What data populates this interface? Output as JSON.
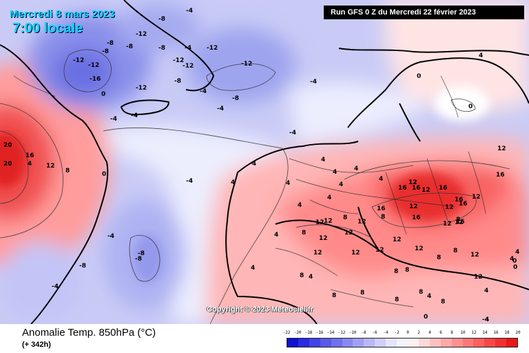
{
  "header": {
    "date": "Mercredi 8 mars 2023",
    "time": "7:00 locale",
    "run": "Run GFS 0 Z du Mercredi 22 février 2023"
  },
  "copyright": "Copyright © 2023 Meteociel.fr",
  "footer": {
    "title": "Anomalie Temp. 850hPa (°C)",
    "lead": "(+ 342h)"
  },
  "legend": {
    "ticks": [
      "-22",
      "-20",
      "-18",
      "-16",
      "-14",
      "-12",
      "-10",
      "-8",
      "-6",
      "-4",
      "-2",
      "0",
      "2",
      "4",
      "6",
      "8",
      "10",
      "12",
      "14",
      "16",
      "18",
      "20"
    ],
    "colors": [
      "#1010d0",
      "#2a2ae0",
      "#4242e8",
      "#5a5ae8",
      "#7070ec",
      "#8888f0",
      "#a0a0f4",
      "#b8b8f6",
      "#cfcffa",
      "#e4e4fc",
      "#f3f3fe",
      "#fff0f0",
      "#ffd8d8",
      "#ffc0c0",
      "#ffa8a8",
      "#ff9090",
      "#ff7878",
      "#ff6060",
      "#f84848",
      "#f03030",
      "#e81818"
    ]
  },
  "map_labels": [
    {
      "text": "-8"
    },
    {
      "text": "-12"
    },
    {
      "text": "-4"
    },
    {
      "text": "-8"
    },
    {
      "text": "-12"
    },
    {
      "text": "-8"
    },
    {
      "text": "-12"
    },
    {
      "text": "-16"
    },
    {
      "text": "-12"
    },
    {
      "text": "-8"
    },
    {
      "text": "-8"
    },
    {
      "text": "-4"
    },
    {
      "text": "-12"
    },
    {
      "text": "-12"
    },
    {
      "text": "-8"
    },
    {
      "text": "-12"
    },
    {
      "text": "-4"
    },
    {
      "text": "-12"
    },
    {
      "text": "-8"
    },
    {
      "text": "-4"
    },
    {
      "text": "-4"
    },
    {
      "text": "-4"
    },
    {
      "text": "-4"
    },
    {
      "text": "-8"
    },
    {
      "text": "-4"
    },
    {
      "text": "-4"
    },
    {
      "text": "-8"
    },
    {
      "text": "-8"
    },
    {
      "text": "-4"
    },
    {
      "text": "-4"
    },
    {
      "text": "-4"
    },
    {
      "text": "0"
    },
    {
      "text": "0"
    },
    {
      "text": "0"
    },
    {
      "text": "0"
    },
    {
      "text": "4"
    },
    {
      "text": "4"
    },
    {
      "text": "4"
    },
    {
      "text": "8"
    },
    {
      "text": "12"
    },
    {
      "text": "16"
    },
    {
      "text": "20"
    },
    {
      "text": "20"
    },
    {
      "text": "4"
    },
    {
      "text": "4"
    },
    {
      "text": "4"
    },
    {
      "text": "4"
    },
    {
      "text": "4"
    },
    {
      "text": "4"
    },
    {
      "text": "4"
    },
    {
      "text": "4"
    },
    {
      "text": "4"
    },
    {
      "text": "4"
    },
    {
      "text": "4"
    },
    {
      "text": "8"
    },
    {
      "text": "8"
    },
    {
      "text": "12"
    },
    {
      "text": "12"
    },
    {
      "text": "16"
    },
    {
      "text": "16"
    },
    {
      "text": "16"
    },
    {
      "text": "12"
    },
    {
      "text": "12"
    },
    {
      "text": "12"
    },
    {
      "text": "16"
    },
    {
      "text": "16"
    },
    {
      "text": "16"
    },
    {
      "text": "16"
    },
    {
      "text": "12"
    },
    {
      "text": "12"
    },
    {
      "text": "8"
    },
    {
      "text": "12"
    },
    {
      "text": "12"
    },
    {
      "text": "8"
    },
    {
      "text": "12"
    },
    {
      "text": "16"
    },
    {
      "text": "12"
    },
    {
      "text": "12"
    },
    {
      "text": "16"
    },
    {
      "text": "12"
    },
    {
      "text": "12"
    },
    {
      "text": "12"
    },
    {
      "text": "12"
    },
    {
      "text": "12"
    },
    {
      "text": "8"
    },
    {
      "text": "12"
    },
    {
      "text": "12"
    },
    {
      "text": "8"
    },
    {
      "text": "8"
    },
    {
      "text": "8"
    },
    {
      "text": "8"
    },
    {
      "text": "8"
    },
    {
      "text": "8"
    },
    {
      "text": "8"
    },
    {
      "text": "8"
    },
    {
      "text": "8"
    },
    {
      "text": "12"
    },
    {
      "text": "4"
    },
    {
      "text": "4"
    },
    {
      "text": "4"
    },
    {
      "text": "0"
    },
    {
      "text": "0"
    },
    {
      "text": "4"
    },
    {
      "text": "0"
    },
    {
      "text": "4"
    },
    {
      "text": "-4"
    }
  ]
}
